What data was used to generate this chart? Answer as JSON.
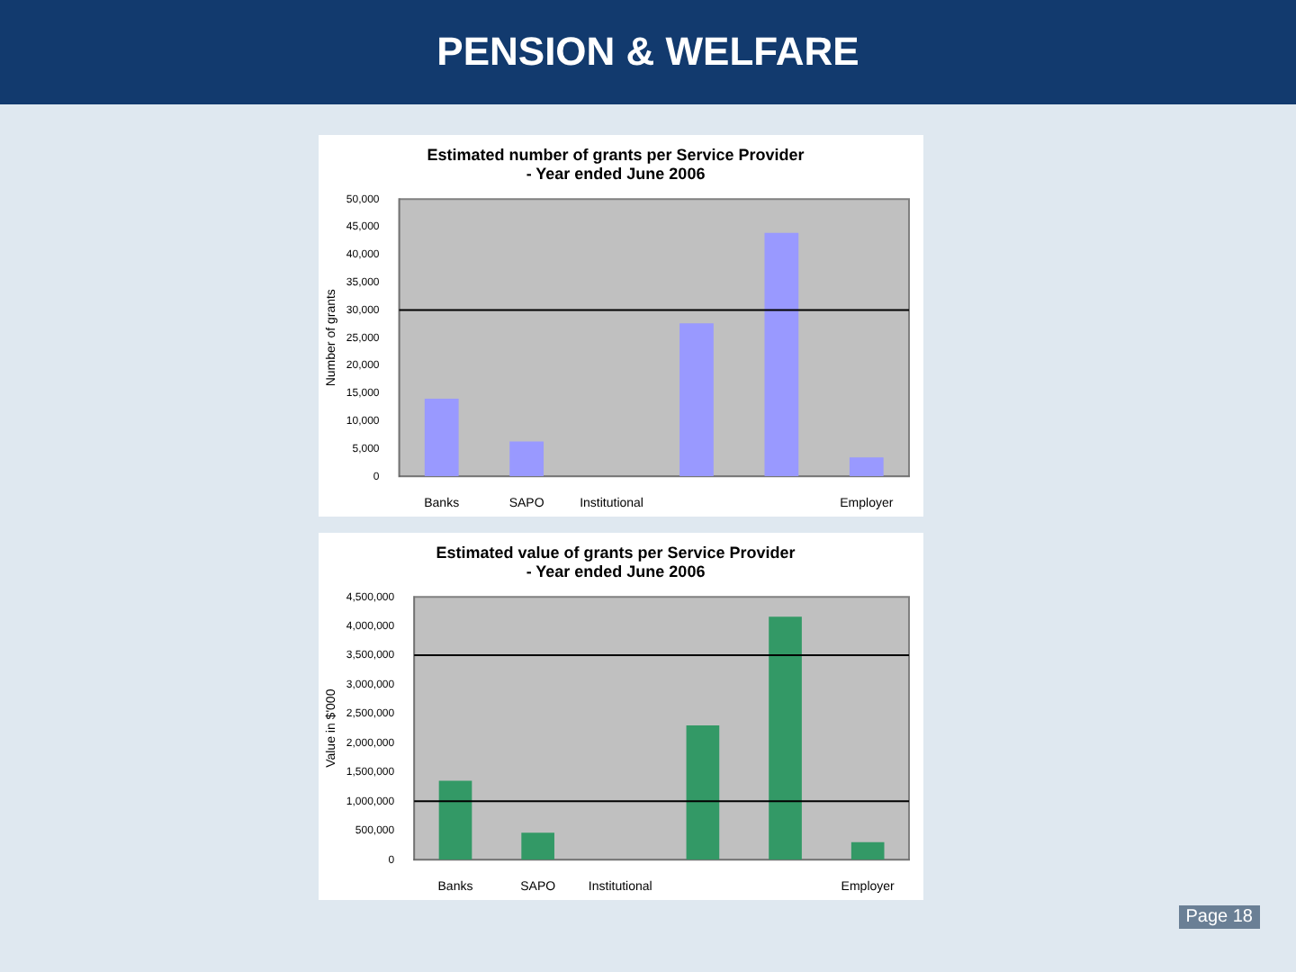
{
  "chart_data": [
    {
      "type": "bar",
      "title": "Estimated number of grants per Service Provider\n- Year ended June 2006",
      "ylabel": "Number of grants",
      "categories": [
        "Banks",
        "SAPO",
        "Institutional",
        null,
        null,
        "Employer"
      ],
      "series": [
        {
          "color": "#9999ff",
          "values": [
            14000,
            6300,
            0,
            27600,
            43900,
            3400
          ]
        }
      ],
      "ylim": [
        0,
        50000
      ],
      "yticks": [
        {
          "value": 0,
          "label": "0"
        },
        {
          "value": 5000,
          "label": "5,000"
        },
        {
          "value": 10000,
          "label": "10,000"
        },
        {
          "value": 15000,
          "label": "15,000"
        },
        {
          "value": 20000,
          "label": "20,000"
        },
        {
          "value": 25000,
          "label": "25,000"
        },
        {
          "value": 30000,
          "label": "30,000"
        },
        {
          "value": 35000,
          "label": "35,000"
        },
        {
          "value": 40000,
          "label": "40,000"
        },
        {
          "value": 45000,
          "label": "45,000"
        },
        {
          "value": 50000,
          "label": "50,000"
        }
      ],
      "ref_lines": [
        {
          "axis": "y",
          "value": 30000,
          "color": "#000000"
        }
      ],
      "annotations": [
        "PENSION & WELFARE"
      ]
    },
    {
      "type": "bar",
      "title": "Estimated value of grants per Service Provider\n- Year ended June 2006",
      "ylabel": "Value in $'000",
      "categories": [
        "Banks",
        "SAPO",
        "Institutional",
        null,
        null,
        "Employer"
      ],
      "series": [
        {
          "color": "#339966",
          "values": [
            1350000,
            460000,
            0,
            2300000,
            4160000,
            300000
          ]
        }
      ],
      "ylim": [
        0,
        4500000
      ],
      "yticks": [
        {
          "value": 0,
          "label": "0"
        },
        {
          "value": 500000,
          "label": "500,000"
        },
        {
          "value": 1000000,
          "label": "1,000,000"
        },
        {
          "value": 1500000,
          "label": "1,500,000"
        },
        {
          "value": 2000000,
          "label": "2,000,000"
        },
        {
          "value": 2500000,
          "label": "2,500,000"
        },
        {
          "value": 3000000,
          "label": "3,000,000"
        },
        {
          "value": 3500000,
          "label": "3,500,000"
        },
        {
          "value": 4000000,
          "label": "4,000,000"
        },
        {
          "value": 4500000,
          "label": "4,500,000"
        }
      ],
      "ref_lines": [
        {
          "axis": "y",
          "value": 1000000,
          "color": "#000000"
        },
        {
          "axis": "y",
          "value": 3500000,
          "color": "#000000"
        }
      ],
      "annotations": [
        "Page 18"
      ]
    }
  ]
}
